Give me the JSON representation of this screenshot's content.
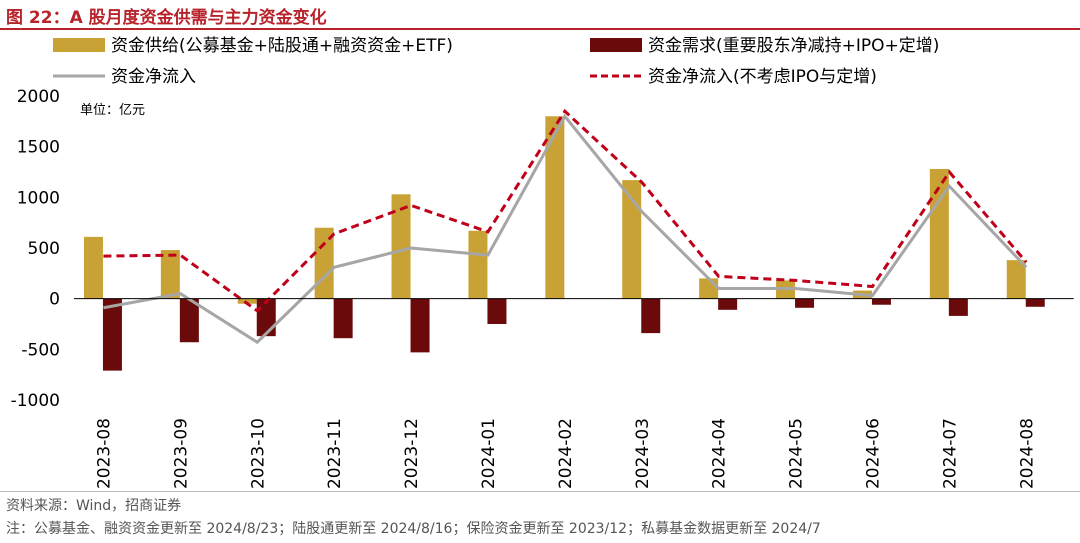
{
  "figure": {
    "title": "图 22：A 股月度资金供需与主力资金变化",
    "source": "资料来源：Wind，招商证券",
    "note": "注：公募基金、融资资金更新至 2024/8/23；陆股通更新至 2024/8/16；保险资金更新至 2023/12；私募基金数据更新至 2024/7",
    "unit_label": "单位：亿元"
  },
  "colors": {
    "title": "#B8232B",
    "supply": "#C9A236",
    "demand": "#6B0A0A",
    "net": "#A6A6A6",
    "net_excl": "#C0001A"
  },
  "chart_data": {
    "type": "bar",
    "categories": [
      "2023-08",
      "2023-09",
      "2023-10",
      "2023-11",
      "2023-12",
      "2024-01",
      "2024-02",
      "2024-03",
      "2024-04",
      "2024-05",
      "2024-06",
      "2024-07",
      "2024-08"
    ],
    "ylim": [
      -1000,
      2000
    ],
    "yticks": [
      2000,
      1500,
      1000,
      500,
      0,
      -500,
      -1000
    ],
    "grid": false,
    "legend_position": "top",
    "series": [
      {
        "name": "资金供给(公募基金+陆股通+融资资金+ETF)",
        "type": "bar",
        "values": [
          610,
          480,
          -50,
          700,
          1030,
          670,
          1800,
          1170,
          200,
          180,
          80,
          1280,
          380
        ]
      },
      {
        "name": "资金需求(重要股东净减持+IPO+定增)",
        "type": "bar",
        "values": [
          -710,
          -430,
          -370,
          -390,
          -530,
          -250,
          0,
          -340,
          -110,
          -90,
          -60,
          -170,
          -80
        ]
      },
      {
        "name": "资金净流入",
        "type": "line",
        "values": [
          -90,
          50,
          -430,
          310,
          500,
          430,
          1800,
          860,
          100,
          100,
          30,
          1110,
          310
        ]
      },
      {
        "name": "资金净流入(不考虑IPO与定增)",
        "type": "line",
        "values": [
          420,
          430,
          -120,
          640,
          920,
          660,
          1850,
          1150,
          220,
          180,
          120,
          1250,
          360
        ]
      }
    ]
  }
}
